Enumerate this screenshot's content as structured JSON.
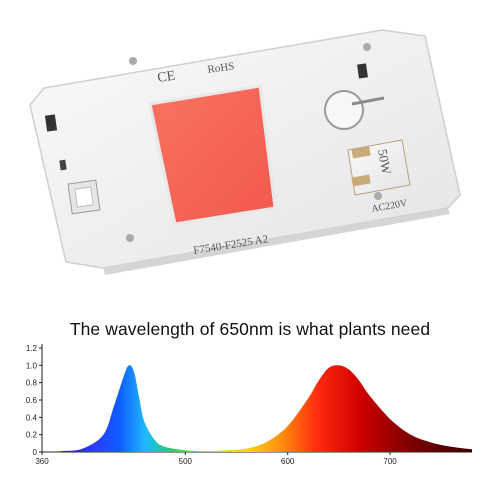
{
  "product": {
    "ce_mark": "CE",
    "rohs_mark": "RoHS",
    "model_code": "F7540-F2525  A2",
    "wattage": "50W",
    "voltage": "AC220V",
    "colors": {
      "board": "#f1f1f1",
      "led_chip": "#f76559",
      "pad": "#c9aa7a"
    }
  },
  "headline": "The wavelength of 650nm is what plants need",
  "chart_data": {
    "type": "area",
    "title": "The wavelength of 650nm is what plants need",
    "xlabel": "",
    "ylabel": "",
    "xlim": [
      360,
      780
    ],
    "ylim": [
      0,
      1.2
    ],
    "x_ticks": [
      360,
      500,
      600,
      700
    ],
    "y_ticks": [
      0,
      0.2,
      0.4,
      0.6,
      0.8,
      1.0,
      1.2
    ],
    "y_tick_labels": [
      "0",
      "0.2",
      "0.4",
      "0.6",
      "0.8",
      "1.0",
      "1.2"
    ],
    "grid": false,
    "fill": "spectral-rainbow",
    "series": [
      {
        "x": [
          360,
          380,
          400,
          420,
          430,
          440,
          445,
          450,
          455,
          460,
          470,
          480,
          500,
          520,
          540,
          560,
          580,
          600,
          620,
          630,
          640,
          650,
          660,
          670,
          680,
          700,
          720,
          740,
          760,
          780
        ],
        "values": [
          0,
          0.01,
          0.04,
          0.2,
          0.52,
          0.88,
          1.0,
          0.92,
          0.62,
          0.35,
          0.14,
          0.06,
          0.02,
          0.01,
          0.02,
          0.04,
          0.12,
          0.3,
          0.62,
          0.82,
          0.97,
          1.0,
          0.95,
          0.82,
          0.65,
          0.38,
          0.2,
          0.11,
          0.06,
          0.03
        ]
      }
    ]
  }
}
